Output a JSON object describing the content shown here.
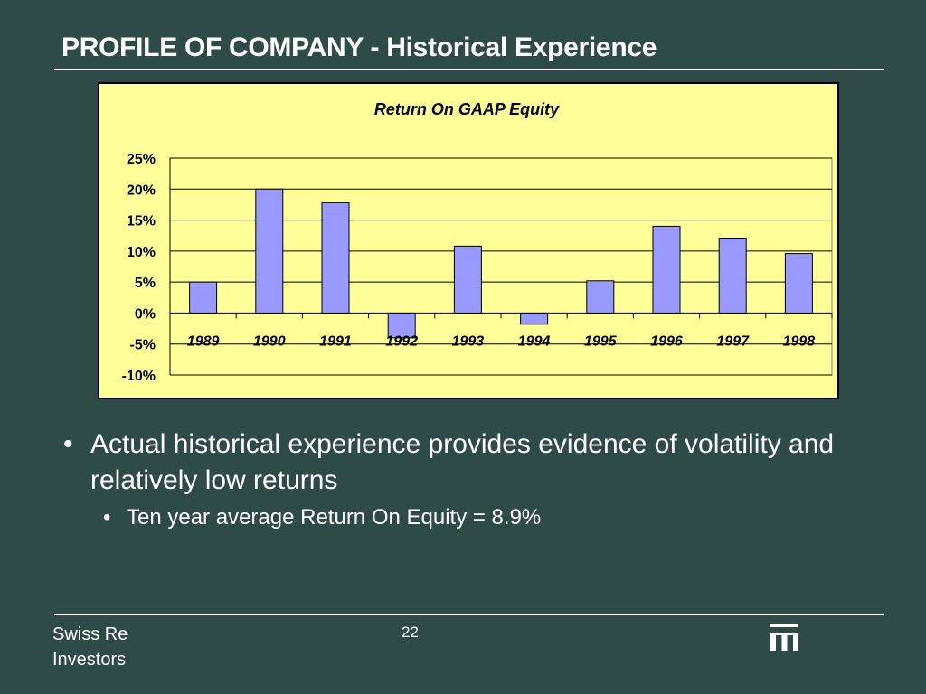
{
  "slide": {
    "title": "PROFILE OF COMPANY - Historical Experience",
    "bullets": [
      "Actual historical experience provides evidence of volatility and relatively low returns"
    ],
    "sub_bullets": [
      "Ten year average Return On Equity = 8.9%"
    ],
    "bullet_marker": "•"
  },
  "footer": {
    "company_line1": "Swiss Re",
    "company_line2": "Investors",
    "page_number": "22",
    "logo_icon": "swiss-re-logo"
  },
  "colors": {
    "background": "#2f4b47",
    "plot_background": "#ffff99",
    "bar_fill": "#9999ff",
    "text_light": "#ffffff"
  },
  "chart_data": {
    "type": "bar",
    "title": "Return On GAAP Equity",
    "categories": [
      "1989",
      "1990",
      "1991",
      "1992",
      "1993",
      "1994",
      "1995",
      "1996",
      "1997",
      "1998"
    ],
    "values": [
      5.0,
      20.0,
      17.8,
      -4.0,
      10.8,
      -1.8,
      5.2,
      14.0,
      12.1,
      9.6
    ],
    "ylim": [
      -10,
      25
    ],
    "yticks": [
      25,
      20,
      15,
      10,
      5,
      0,
      -5,
      -10
    ],
    "ytick_labels": [
      "25%",
      "20%",
      "15%",
      "10%",
      "5%",
      "0%",
      "-5%",
      "-10%"
    ],
    "xlabel": "",
    "ylabel": "",
    "grid": true,
    "legend": "none"
  }
}
